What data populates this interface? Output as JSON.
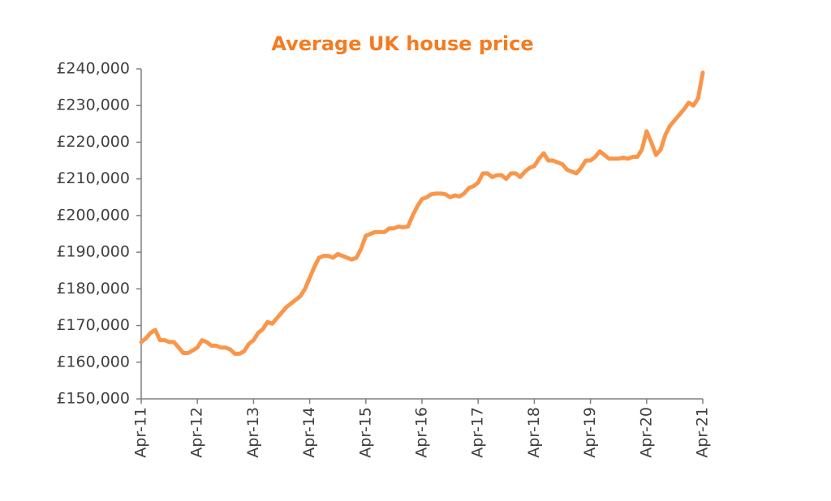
{
  "chart_data": {
    "type": "line",
    "title": "Average UK house price",
    "categories": [
      "Apr-11",
      null,
      null,
      null,
      null,
      null,
      null,
      null,
      null,
      null,
      null,
      null,
      "Apr-12",
      null,
      null,
      null,
      null,
      null,
      null,
      null,
      null,
      null,
      null,
      null,
      "Apr-13",
      null,
      null,
      null,
      null,
      null,
      null,
      null,
      null,
      null,
      null,
      null,
      "Apr-14",
      null,
      null,
      null,
      null,
      null,
      null,
      null,
      null,
      null,
      null,
      null,
      "Apr-15",
      null,
      null,
      null,
      null,
      null,
      null,
      null,
      null,
      null,
      null,
      null,
      "Apr-16",
      null,
      null,
      null,
      null,
      null,
      null,
      null,
      null,
      null,
      null,
      null,
      "Apr-17",
      null,
      null,
      null,
      null,
      null,
      null,
      null,
      null,
      null,
      null,
      null,
      "Apr-18",
      null,
      null,
      null,
      null,
      null,
      null,
      null,
      null,
      null,
      null,
      null,
      "Apr-19",
      null,
      null,
      null,
      null,
      null,
      null,
      null,
      null,
      null,
      null,
      null,
      "Apr-20",
      null,
      null,
      null,
      null,
      null,
      null,
      null,
      null,
      null,
      null,
      null,
      "Apr-21"
    ],
    "values": [
      165500,
      166500,
      168000,
      168800,
      166000,
      166000,
      165500,
      165500,
      164000,
      162500,
      162500,
      163200,
      164000,
      166000,
      165500,
      164500,
      164500,
      164000,
      164000,
      163500,
      162300,
      162300,
      163000,
      165000,
      166000,
      168000,
      169000,
      171000,
      170500,
      172000,
      173500,
      175000,
      176000,
      177000,
      178000,
      180000,
      183000,
      186000,
      188500,
      189000,
      189000,
      188500,
      189500,
      189000,
      188500,
      188000,
      188500,
      191000,
      194500,
      195000,
      195500,
      195500,
      195500,
      196500,
      196500,
      197000,
      196800,
      197000,
      200000,
      202500,
      204500,
      205000,
      205800,
      206000,
      206000,
      205800,
      205000,
      205500,
      205200,
      206000,
      207500,
      208000,
      209000,
      211500,
      211500,
      210500,
      211000,
      211000,
      210000,
      211500,
      211500,
      210500,
      212000,
      213000,
      213500,
      215500,
      217000,
      215000,
      215000,
      214500,
      214000,
      212500,
      212000,
      211500,
      213000,
      215000,
      215000,
      216000,
      217500,
      216500,
      215500,
      215500,
      215500,
      215800,
      215500,
      216000,
      216000,
      218000,
      223000,
      220000,
      216500,
      218000,
      222000,
      224500,
      226000,
      227500,
      229000,
      230800,
      230000,
      232000,
      239000
    ],
    "color": "#f9964a",
    "ylim": [
      150000,
      240000
    ],
    "yticks": [
      {
        "value": 150000,
        "label": "£150,000"
      },
      {
        "value": 160000,
        "label": "£160,000"
      },
      {
        "value": 170000,
        "label": "£170,000"
      },
      {
        "value": 180000,
        "label": "£180,000"
      },
      {
        "value": 190000,
        "label": "£190,000"
      },
      {
        "value": 200000,
        "label": "£200,000"
      },
      {
        "value": 210000,
        "label": "£210,000"
      },
      {
        "value": 220000,
        "label": "£220,000"
      },
      {
        "value": 230000,
        "label": "£230,000"
      },
      {
        "value": 240000,
        "label": "£240,000"
      }
    ],
    "grid": false
  }
}
